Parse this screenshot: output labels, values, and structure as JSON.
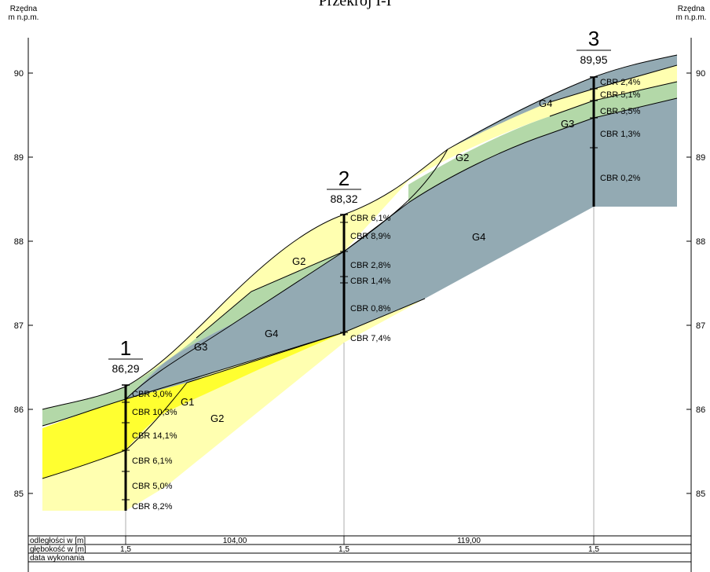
{
  "title": "Przekrój I-I",
  "axis_label_left": [
    "Rzędna",
    "m n.p.m."
  ],
  "axis_label_right": [
    "Rzędna",
    "m n.p.m."
  ],
  "y_ticks": [
    "90",
    "89",
    "88",
    "87",
    "86",
    "85"
  ],
  "colors": {
    "G1": "#ffff30",
    "G2": "#ffffb0",
    "G3": "#b3d8a8",
    "G4": "#93aab3"
  },
  "boreholes": [
    {
      "number": "1",
      "elevation": "86,29",
      "cbr": [
        "CBR 3,0%",
        "CBR 10,3%",
        "CBR 14,1%",
        "CBR 6,1%",
        "CBR 5,0%",
        "CBR 8,2%"
      ]
    },
    {
      "number": "2",
      "elevation": "88,32",
      "cbr": [
        "CBR 6,1%",
        "CBR 8,9%",
        "CBR 2,8%",
        "CBR 1,4%",
        "CBR 0,8%",
        "CBR 7,4%"
      ]
    },
    {
      "number": "3",
      "elevation": "89,95",
      "cbr": [
        "CBR 2,4%",
        "CBR 5,1%",
        "CBR 3,5%",
        "CBR 1,3%",
        "CBR 0,2%"
      ]
    }
  ],
  "layer_labels": [
    "G1",
    "G2",
    "G3",
    "G4",
    "G2",
    "G4",
    "G2",
    "G4",
    "G3"
  ],
  "table": {
    "row1_label": "odległości w [m]",
    "row2_label": "głębokość w [m]",
    "row3_label": "data wykonania",
    "distances": [
      "104,00",
      "119,00"
    ],
    "depths": [
      "1,5",
      "1,5",
      "1,5"
    ]
  }
}
